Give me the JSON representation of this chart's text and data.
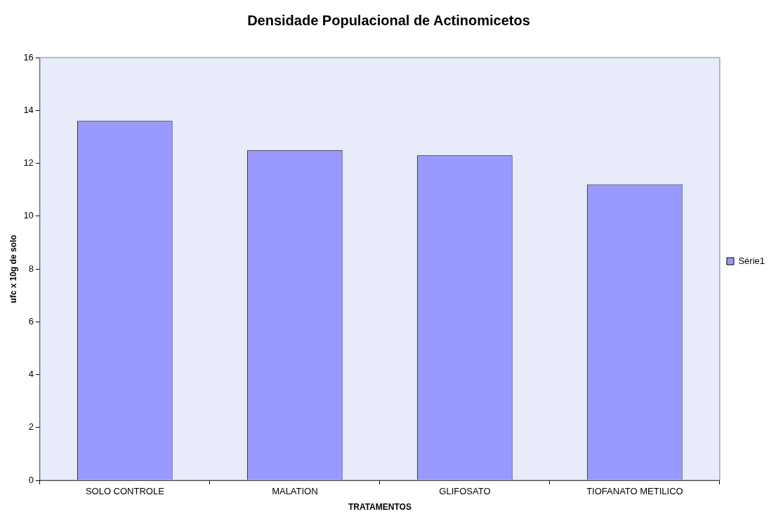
{
  "chart_data": {
    "type": "bar",
    "title": "Densidade Populacional de Actinomicetos",
    "xlabel": "TRATAMENTOS",
    "ylabel": "ufc x 10g de solo",
    "categories": [
      "SOLO CONTROLE",
      "MALATION",
      "GLIFOSATO",
      "TIOFANATO METILICO"
    ],
    "series": [
      {
        "name": "Série1",
        "color": "#9999ff",
        "values": [
          13.6,
          12.5,
          12.3,
          11.2
        ]
      }
    ],
    "ylim": [
      0,
      16
    ],
    "yticks": [
      0,
      2,
      4,
      6,
      8,
      10,
      12,
      14,
      16
    ],
    "grid": false,
    "legend": "right"
  }
}
